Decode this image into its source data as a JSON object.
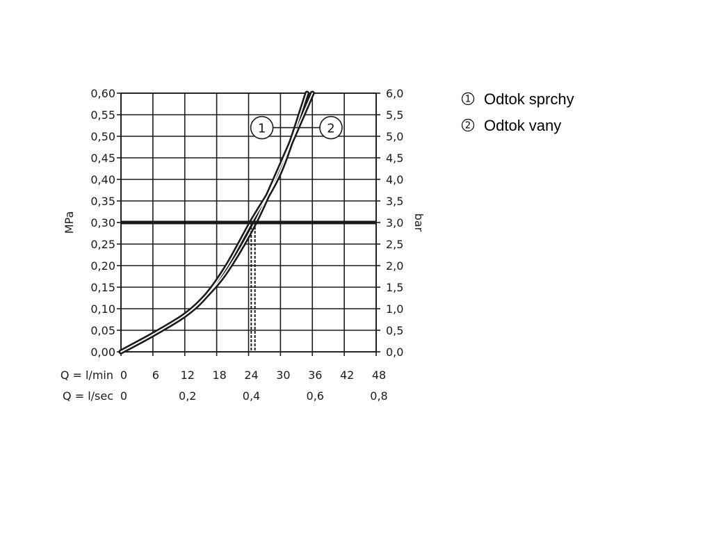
{
  "chart_data": {
    "type": "line",
    "y_left": {
      "label": "MPa",
      "range": [
        0,
        0.6
      ],
      "ticks": [
        "0,00",
        "0,05",
        "0,10",
        "0,15",
        "0,20",
        "0,25",
        "0,30",
        "0,35",
        "0,40",
        "0,45",
        "0,50",
        "0,55",
        "0,60"
      ]
    },
    "y_right": {
      "label": "bar",
      "range": [
        0,
        6
      ],
      "ticks": [
        "0,0",
        "0,5",
        "1,0",
        "1,5",
        "2,0",
        "2,5",
        "3,0",
        "3,5",
        "4,0",
        "4,5",
        "5,0",
        "5,5",
        "6,0"
      ]
    },
    "x_primary": {
      "label": "Q = l/min",
      "range": [
        0,
        48
      ],
      "ticks": [
        "0",
        "6",
        "12",
        "18",
        "24",
        "30",
        "36",
        "42",
        "48"
      ]
    },
    "x_secondary": {
      "label": "Q = l/sec",
      "ticks": [
        {
          "value": 0,
          "label": "0"
        },
        {
          "value": 12,
          "label": "0,2"
        },
        {
          "value": 24,
          "label": "0,4"
        },
        {
          "value": 36,
          "label": "0,6"
        },
        {
          "value": 48,
          "label": "0,8"
        }
      ]
    },
    "grid": true,
    "reference_line": {
      "y": 0.3
    },
    "drop_lines": [
      {
        "series": "1",
        "x": 24.5,
        "y": 0.3
      },
      {
        "series": "2",
        "x": 25.2,
        "y": 0.3
      }
    ],
    "series": [
      {
        "name": "1",
        "x": [
          0,
          6,
          12,
          16,
          20,
          24.5,
          30,
          35
        ],
        "y": [
          0,
          0.04,
          0.085,
          0.13,
          0.2,
          0.3,
          0.42,
          0.6
        ]
      },
      {
        "name": "2",
        "x": [
          0,
          6,
          12,
          16,
          20,
          25.2,
          30,
          36
        ],
        "y": [
          0,
          0.04,
          0.085,
          0.13,
          0.19,
          0.3,
          0.43,
          0.6
        ]
      }
    ],
    "markers": [
      {
        "label": "1",
        "x": 26.5,
        "y": 0.52
      },
      {
        "label": "2",
        "x": 39.5,
        "y": 0.52
      }
    ]
  },
  "legend": {
    "items": [
      {
        "number": "1",
        "text": "Odtok sprchy"
      },
      {
        "number": "2",
        "text": "Odtok vany"
      }
    ]
  }
}
